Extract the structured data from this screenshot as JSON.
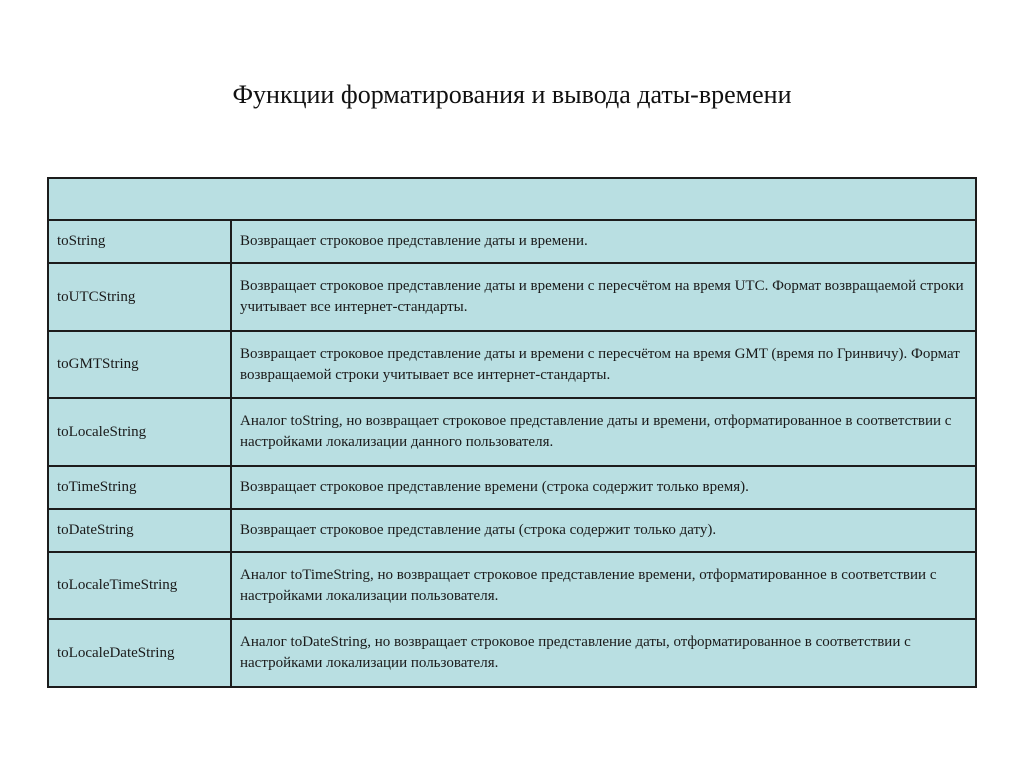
{
  "title": "Функции форматирования и вывода даты-времени",
  "table": {
    "header": "",
    "rows": [
      {
        "name": "toString",
        "desc": "Возвращает строковое представление даты и времени."
      },
      {
        "name": "toUTCString",
        "desc": "Возвращает строковое представление даты и времени с пересчётом на время UTC. Формат возвращаемой строки учитывает все интернет-стандарты."
      },
      {
        "name": "toGMTString",
        "desc": "Возвращает строковое представление даты и времени с пересчётом на время GMT (время по Гринвичу). Формат возвращаемой строки учитывает все интернет-стандарты."
      },
      {
        "name": "toLocaleString",
        "desc": "Аналог toString, но возвращает строковое представление даты и времени, отформатированное в соответствии с настройками локализации данного пользователя."
      },
      {
        "name": "toTimeString",
        "desc": "Возвращает строковое представление времени (строка содержит только время)."
      },
      {
        "name": "toDateString",
        "desc": "Возвращает строковое представление даты (строка содержит только дату)."
      },
      {
        "name": "toLocaleTimeString",
        "desc": "Аналог toTimeString, но возвращает строковое представление времени, отформатированное в соответствии с настройками локализации пользователя."
      },
      {
        "name": "toLocaleDateString",
        "desc": "Аналог toDateString, но возвращает строковое представление даты, отформатированное в соответствии с настройками локализации пользователя."
      }
    ]
  }
}
